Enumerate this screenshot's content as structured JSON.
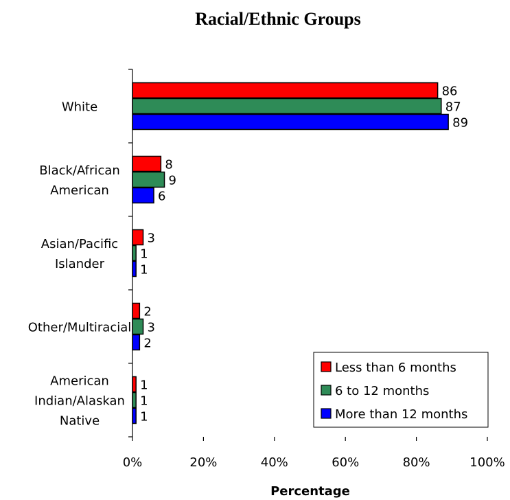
{
  "chart_data": {
    "type": "bar",
    "orientation": "horizontal",
    "title": "Racial/Ethnic Groups",
    "xlabel": "Percentage",
    "ylabel": "",
    "xlim": [
      0,
      100
    ],
    "x_ticks": [
      "0%",
      "20%",
      "40%",
      "60%",
      "80%",
      "100%"
    ],
    "categories": [
      [
        "White"
      ],
      [
        "Black/African",
        "American"
      ],
      [
        "Asian/Pacific",
        "Islander"
      ],
      [
        "Other/Multiracial"
      ],
      [
        "American",
        "Indian/Alaskan",
        "Native"
      ]
    ],
    "series": [
      {
        "name": "Less than 6 months",
        "color": "#ff0000",
        "values": [
          86,
          8,
          3,
          2,
          1
        ]
      },
      {
        "name": "6 to 12 months",
        "color": "#2e8b57",
        "values": [
          87,
          9,
          1,
          3,
          1
        ]
      },
      {
        "name": "More than 12 months",
        "color": "#0000ff",
        "values": [
          89,
          6,
          1,
          2,
          1
        ]
      }
    ],
    "grid": false,
    "legend_position": "bottom-right"
  }
}
